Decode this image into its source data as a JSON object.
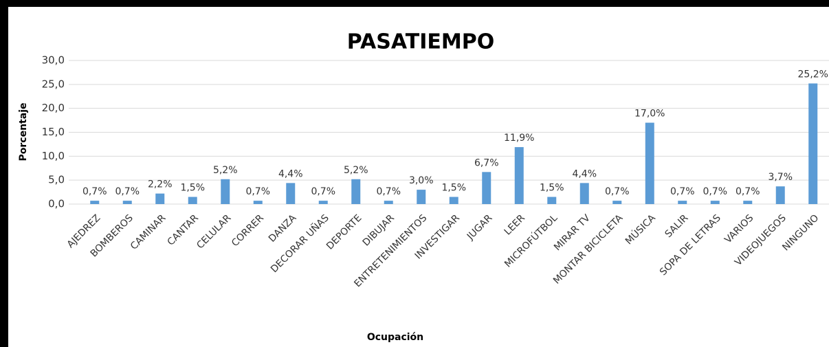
{
  "chart_data": {
    "type": "bar",
    "title": "PASATIEMPO",
    "y_label": "Porcentaje",
    "x_label": "Ocupación",
    "categories": [
      "AJEDREZ",
      "BOMBEROS",
      "CAMINAR",
      "CANTAR",
      "CELULAR",
      "CORRER",
      "DANZA",
      "DECORAR UÑAS",
      "DEPORTE",
      "DIBUJAR",
      "ENTRETENIMIENTOS",
      "INVESTIGAR",
      "JUGAR",
      "LEER",
      "MICROFÚTBOL",
      "MIRAR TV",
      "MONTAR BICICLETA",
      "MÚSICA",
      "SALIR",
      "SOPA DE LETRAS",
      "VARIOS",
      "VIDEOJUEGOS",
      "NINGUNO"
    ],
    "values": [
      0.7,
      0.7,
      2.2,
      1.5,
      5.2,
      0.7,
      4.4,
      0.7,
      5.2,
      0.7,
      3.0,
      1.5,
      6.7,
      11.9,
      1.5,
      4.4,
      0.7,
      17.0,
      0.7,
      0.7,
      0.7,
      3.7,
      25.2
    ],
    "value_labels": [
      "0,7%",
      "0,7%",
      "2,2%",
      "1,5%",
      "5,2%",
      "0,7%",
      "4,4%",
      "0,7%",
      "5,2%",
      "0,7%",
      "3,0%",
      "1,5%",
      "6,7%",
      "11,9%",
      "1,5%",
      "4,4%",
      "0,7%",
      "17,0%",
      "0,7%",
      "0,7%",
      "0,7%",
      "3,7%",
      "25,2%"
    ],
    "color": "#5b9bd5",
    "ylim": [
      0,
      30
    ],
    "yticks": [
      {
        "value": 0,
        "label": "0,0"
      },
      {
        "value": 5,
        "label": "5,0"
      },
      {
        "value": 10,
        "label": "10,0"
      },
      {
        "value": 15,
        "label": "15,0"
      },
      {
        "value": 20,
        "label": "20,0"
      },
      {
        "value": 25,
        "label": "25,0"
      },
      {
        "value": 30,
        "label": "30,0"
      }
    ],
    "grid": true
  }
}
